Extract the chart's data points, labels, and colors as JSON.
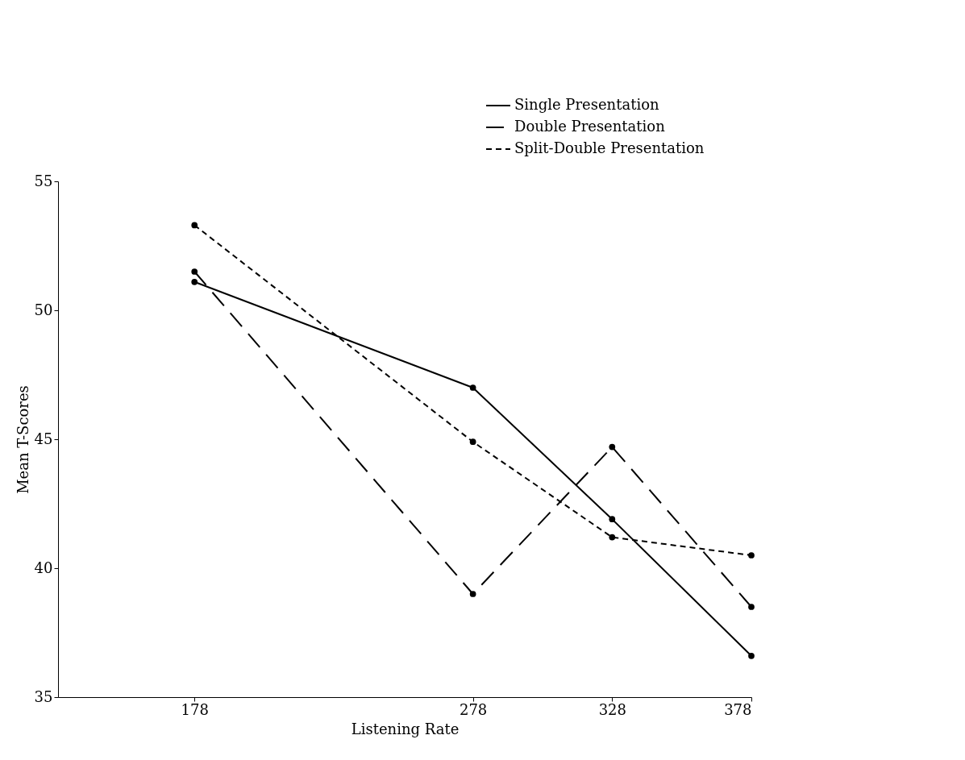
{
  "chart_data": {
    "type": "line",
    "xlabel": "Listening Rate",
    "ylabel": "Mean T-Scores",
    "x": [
      178,
      278,
      328,
      378
    ],
    "xlim": [
      129,
      378
    ],
    "xticks": [
      178,
      278,
      328,
      378
    ],
    "ylim": [
      35,
      55
    ],
    "yticks": [
      35,
      40,
      45,
      50,
      55
    ],
    "grid": false,
    "legend": "top right",
    "marker": "circle",
    "series": [
      {
        "name": "Single Presentation",
        "color": "#000000",
        "line_style": "solid",
        "values": [
          51.1,
          47.0,
          41.9,
          36.6
        ]
      },
      {
        "name": "Double Presentation",
        "color": "#000000",
        "line_style": "dashed",
        "values": [
          51.5,
          39.0,
          44.7,
          38.5
        ]
      },
      {
        "name": "Split-Double Presentation",
        "color": "#000000",
        "line_style": "dotted",
        "values": [
          53.3,
          44.9,
          41.2,
          40.5
        ]
      }
    ]
  }
}
